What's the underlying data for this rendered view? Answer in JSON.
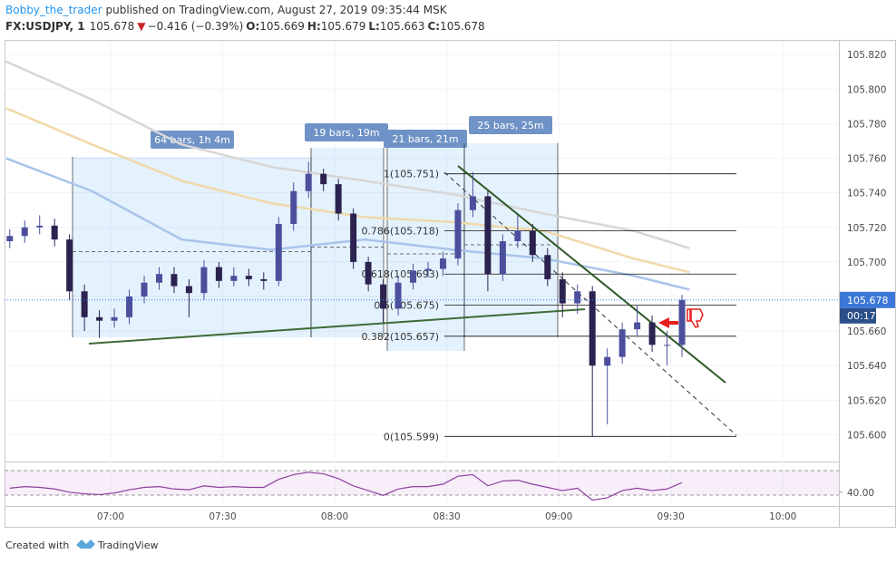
{
  "header": {
    "author": "Bobby_the_trader",
    "published": "published on TradingView.com, August 27, 2019 09:35:44 MSK",
    "symbol": "FX:USDJPY, 1",
    "last": "105.678",
    "change_arrow": "▼",
    "change": "−0.416 (−0.39%)",
    "open_label": "O:",
    "open": "105.669",
    "high_label": "H:",
    "high": "105.679",
    "low_label": "L:",
    "low": "105.663",
    "close_label": "C:",
    "close": "105.678"
  },
  "chart_data": [
    {
      "type": "candlestick",
      "x": [
        393,
        397,
        401,
        405,
        409,
        413,
        417,
        421,
        425,
        429,
        433,
        437,
        441,
        445,
        449,
        453,
        457,
        461,
        465,
        469,
        473,
        477,
        481,
        485,
        489,
        493,
        497,
        501,
        505,
        509,
        513,
        517,
        521,
        525,
        529,
        533,
        537,
        541,
        545,
        549,
        553,
        557,
        561,
        565,
        569,
        573
      ],
      "open": [
        105.712,
        105.715,
        105.72,
        105.721,
        105.713,
        105.683,
        105.668,
        105.666,
        105.668,
        105.68,
        105.688,
        105.693,
        105.686,
        105.682,
        105.697,
        105.689,
        105.692,
        105.69,
        105.689,
        105.722,
        105.741,
        105.751,
        105.745,
        105.728,
        105.7,
        105.687,
        105.673,
        105.688,
        105.695,
        105.696,
        105.702,
        105.73,
        105.738,
        105.693,
        105.712,
        105.718,
        105.704,
        105.69,
        105.676,
        105.683,
        105.64,
        105.645,
        105.661,
        105.665,
        105.652,
        105.652
      ],
      "high": [
        105.719,
        105.724,
        105.727,
        105.725,
        105.716,
        105.687,
        105.672,
        105.673,
        105.684,
        105.692,
        105.697,
        105.697,
        105.69,
        105.701,
        105.7,
        105.697,
        105.696,
        105.694,
        105.726,
        105.746,
        105.758,
        105.754,
        105.748,
        105.731,
        105.703,
        105.69,
        105.692,
        105.699,
        105.7,
        105.706,
        105.734,
        105.752,
        105.741,
        105.716,
        105.727,
        105.722,
        105.708,
        105.694,
        105.687,
        105.686,
        105.65,
        105.665,
        105.675,
        105.669,
        105.66,
        105.681
      ],
      "low": [
        105.708,
        105.711,
        105.716,
        105.709,
        105.678,
        105.66,
        105.656,
        105.662,
        105.664,
        105.676,
        105.684,
        105.682,
        105.668,
        105.678,
        105.685,
        105.686,
        105.686,
        105.684,
        105.686,
        105.718,
        105.737,
        105.741,
        105.724,
        105.696,
        105.683,
        105.665,
        105.669,
        105.684,
        105.691,
        105.692,
        105.698,
        105.726,
        105.683,
        105.689,
        105.708,
        105.7,
        105.686,
        105.668,
        105.67,
        105.599,
        105.606,
        105.641,
        105.657,
        105.648,
        105.64,
        105.645
      ],
      "close": [
        105.715,
        105.72,
        105.721,
        105.713,
        105.683,
        105.668,
        105.666,
        105.668,
        105.68,
        105.688,
        105.693,
        105.686,
        105.682,
        105.697,
        105.689,
        105.692,
        105.69,
        105.689,
        105.722,
        105.741,
        105.751,
        105.745,
        105.728,
        105.7,
        105.687,
        105.673,
        105.688,
        105.695,
        105.696,
        105.702,
        105.73,
        105.738,
        105.693,
        105.712,
        105.718,
        105.704,
        105.69,
        105.676,
        105.683,
        105.64,
        105.645,
        105.661,
        105.665,
        105.652,
        105.652,
        105.678
      ],
      "up_color": "#4b4f9c",
      "down_color": "#2b2250",
      "moving_averages": [
        {
          "color": "#d6d6d6",
          "x": [
            392,
            415,
            439,
            463,
            488,
            512,
            536,
            560,
            575
          ],
          "values": [
            105.816,
            105.794,
            105.768,
            105.755,
            105.747,
            105.739,
            105.728,
            105.718,
            105.708
          ]
        },
        {
          "color": "#f0d9a8",
          "x": [
            392,
            415,
            439,
            463,
            488,
            512,
            536,
            560,
            575
          ],
          "values": [
            105.789,
            105.768,
            105.747,
            105.734,
            105.726,
            105.723,
            105.718,
            105.702,
            105.694
          ]
        },
        {
          "color": "#a9c4ea",
          "x": [
            392,
            415,
            439,
            463,
            488,
            512,
            536,
            560,
            575
          ],
          "values": [
            105.76,
            105.741,
            105.713,
            105.707,
            105.713,
            105.707,
            105.702,
            105.692,
            105.684
          ]
        }
      ],
      "xlim": [
        391.6,
        615
      ],
      "ylim": [
        105.585,
        105.828
      ],
      "xticks": [
        {
          "value": 420,
          "label": "07:00"
        },
        {
          "value": 450,
          "label": "07:30"
        },
        {
          "value": 480,
          "label": "08:00"
        },
        {
          "value": 510,
          "label": "08:30"
        },
        {
          "value": 540,
          "label": "09:00"
        },
        {
          "value": 570,
          "label": "09:30"
        },
        {
          "value": 600,
          "label": "10:00"
        }
      ],
      "yticks": [
        {
          "value": 105.6,
          "label": "105.600"
        },
        {
          "value": 105.62,
          "label": "105.620"
        },
        {
          "value": 105.64,
          "label": "105.640"
        },
        {
          "value": 105.66,
          "label": "105.660"
        },
        {
          "value": 105.68,
          "label": "105.680"
        },
        {
          "value": 105.7,
          "label": "105.700"
        },
        {
          "value": 105.72,
          "label": "105.720"
        },
        {
          "value": 105.74,
          "label": "105.740"
        },
        {
          "value": 105.76,
          "label": "105.760"
        },
        {
          "value": 105.78,
          "label": "105.780"
        },
        {
          "value": 105.8,
          "label": "105.800"
        },
        {
          "value": 105.82,
          "label": "105.820"
        }
      ],
      "grid": true,
      "current_price": {
        "value": 105.678,
        "label": "105.678",
        "countdown": "00:17"
      },
      "fib_levels": [
        {
          "value": 105.751,
          "label": "1(105.751)"
        },
        {
          "value": 105.718,
          "label": "0.786(105.718)"
        },
        {
          "value": 105.693,
          "label": "0.618(105.693)"
        },
        {
          "value": 105.675,
          "label": "0.5(105.675)"
        },
        {
          "value": 105.657,
          "label": "0.382(105.657)"
        },
        {
          "value": 105.599,
          "label": "0(105.599)"
        }
      ],
      "annotations": [
        "64 bars, 1h 4m",
        "19 bars, 19m",
        "21 bars, 21m",
        "25 bars, 25m"
      ]
    },
    {
      "type": "line",
      "x": [
        393,
        397,
        401,
        405,
        409,
        413,
        417,
        421,
        425,
        429,
        433,
        437,
        441,
        445,
        449,
        453,
        457,
        461,
        465,
        469,
        473,
        477,
        481,
        485,
        489,
        493,
        497,
        501,
        505,
        509,
        513,
        517,
        521,
        525,
        529,
        533,
        537,
        541,
        545,
        549,
        553,
        557,
        561,
        565,
        569,
        573
      ],
      "values": [
        45,
        47,
        46,
        44,
        40,
        38,
        37,
        39,
        43,
        46,
        47,
        44,
        43,
        48,
        46,
        47,
        46,
        46,
        56,
        62,
        65,
        63,
        57,
        48,
        42,
        36,
        44,
        47,
        47,
        50,
        60,
        62,
        48,
        54,
        55,
        50,
        46,
        42,
        45,
        30,
        33,
        42,
        45,
        42,
        44,
        52
      ],
      "color": "#8e3ea0",
      "ylim": [
        25,
        75
      ],
      "yticks": [
        {
          "value": 40,
          "label": "40.00"
        }
      ]
    }
  ],
  "footer": {
    "created": "Created with",
    "brand": "TradingView"
  }
}
